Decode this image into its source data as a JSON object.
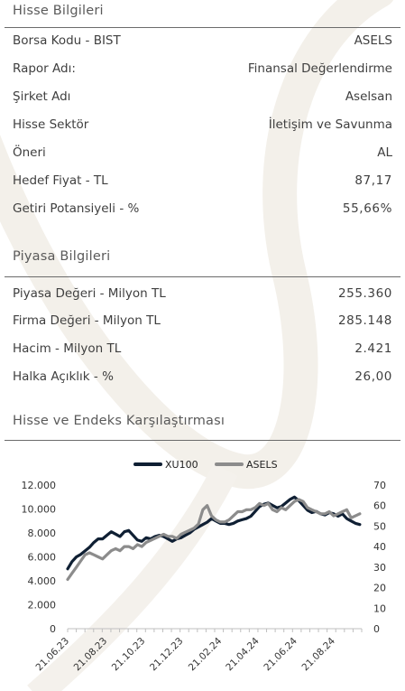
{
  "stock_info": {
    "title": "Hisse Bilgileri",
    "rows": [
      {
        "label": "Borsa Kodu - BIST",
        "value": "ASELS"
      },
      {
        "label": "Rapor Adı:",
        "value": "Finansal Değerlendirme"
      },
      {
        "label": "Şirket Adı",
        "value": "Aselsan"
      },
      {
        "label": "Hisse Sektör",
        "value": "İletişim ve Savunma"
      },
      {
        "label": "Öneri",
        "value": "AL"
      },
      {
        "label": "Hedef Fiyat - TL",
        "value": "87,17"
      },
      {
        "label": "Getiri Potansiyeli - %",
        "value": "55,66%"
      }
    ]
  },
  "market_info": {
    "title": "Piyasa Bilgileri",
    "rows": [
      {
        "label": "Piyasa Değeri - Milyon TL",
        "value": "255.360"
      },
      {
        "label": "Firma Değeri - Milyon TL",
        "value": "285.148"
      },
      {
        "label": "Hacim - Milyon TL",
        "value": "2.421"
      },
      {
        "label": "Halka Açıklık - %",
        "value": "26,00"
      }
    ]
  },
  "comparison": {
    "title": "Hisse ve Endeks Karşılaştırması"
  },
  "chart_data": {
    "type": "line",
    "title": "",
    "xlabel": "",
    "ylabel": "",
    "legend_position": "top-center",
    "grid": false,
    "x_tick_labels": [
      "21.06.23",
      "21.08.23",
      "21.10.23",
      "21.12.23",
      "21.02.24",
      "21.04.24",
      "21.06.24",
      "21.08.24"
    ],
    "x_range": [
      "21.06.23",
      "05.10.24"
    ],
    "y_left_ticks": [
      "0",
      "2.000",
      "4.000",
      "6.000",
      "8.000",
      "10.000",
      "12.000"
    ],
    "y_left_range": [
      0,
      12000
    ],
    "y_right_ticks": [
      "0",
      "10",
      "20",
      "30",
      "40",
      "50",
      "60",
      "70"
    ],
    "y_right_range": [
      0,
      70
    ],
    "series": [
      {
        "name": "XU100",
        "axis": "left",
        "color": "#0f1f33",
        "x": [
          "21.06.23",
          "28.06.23",
          "05.07.23",
          "12.07.23",
          "19.07.23",
          "26.07.23",
          "02.08.23",
          "09.08.23",
          "16.08.23",
          "23.08.23",
          "30.08.23",
          "06.09.23",
          "13.09.23",
          "20.09.23",
          "27.09.23",
          "04.10.23",
          "11.10.23",
          "18.10.23",
          "25.10.23",
          "01.11.23",
          "08.11.23",
          "15.11.23",
          "22.11.23",
          "29.11.23",
          "06.12.23",
          "13.12.23",
          "20.12.23",
          "27.12.23",
          "03.01.24",
          "10.01.24",
          "17.01.24",
          "24.01.24",
          "31.01.24",
          "07.02.24",
          "14.02.24",
          "21.02.24",
          "28.02.24",
          "06.03.24",
          "13.03.24",
          "20.03.24",
          "27.03.24",
          "03.04.24",
          "10.04.24",
          "17.04.24",
          "24.04.24",
          "01.05.24",
          "08.05.24",
          "15.05.24",
          "22.05.24",
          "29.05.24",
          "05.06.24",
          "12.06.24",
          "19.06.24",
          "26.06.24",
          "03.07.24",
          "10.07.24",
          "17.07.24",
          "24.07.24",
          "31.07.24",
          "07.08.24",
          "14.08.24",
          "21.08.24",
          "28.08.24",
          "04.09.24",
          "11.09.24",
          "18.09.24",
          "25.09.24",
          "02.10.24"
        ],
        "values": [
          5000,
          5600,
          6000,
          6200,
          6500,
          6800,
          7200,
          7500,
          7500,
          7800,
          8100,
          7900,
          7700,
          8100,
          8200,
          7800,
          7400,
          7300,
          7600,
          7500,
          7700,
          7800,
          7700,
          7500,
          7300,
          7500,
          7600,
          7800,
          8000,
          8300,
          8500,
          8700,
          8900,
          9200,
          9000,
          8800,
          8800,
          8700,
          8800,
          9000,
          9100,
          9200,
          9400,
          9800,
          10200,
          10400,
          10500,
          10300,
          10100,
          10200,
          10500,
          10800,
          11000,
          10700,
          10300,
          9900,
          9700,
          9800,
          9600,
          9500,
          9700,
          9600,
          9400,
          9600,
          9200,
          9000,
          8800,
          8700
        ]
      },
      {
        "name": "ASELS",
        "axis": "right",
        "color": "#8c8c8c",
        "x": [
          "21.06.23",
          "28.06.23",
          "05.07.23",
          "12.07.23",
          "19.07.23",
          "26.07.23",
          "02.08.23",
          "09.08.23",
          "16.08.23",
          "23.08.23",
          "30.08.23",
          "06.09.23",
          "13.09.23",
          "20.09.23",
          "27.09.23",
          "04.10.23",
          "11.10.23",
          "18.10.23",
          "25.10.23",
          "01.11.23",
          "08.11.23",
          "15.11.23",
          "22.11.23",
          "29.11.23",
          "06.12.23",
          "13.12.23",
          "20.12.23",
          "27.12.23",
          "03.01.24",
          "10.01.24",
          "17.01.24",
          "24.01.24",
          "31.01.24",
          "07.02.24",
          "14.02.24",
          "21.02.24",
          "28.02.24",
          "06.03.24",
          "13.03.24",
          "20.03.24",
          "27.03.24",
          "03.04.24",
          "10.04.24",
          "17.04.24",
          "24.04.24",
          "01.05.24",
          "08.05.24",
          "15.05.24",
          "22.05.24",
          "29.05.24",
          "05.06.24",
          "12.06.24",
          "19.06.24",
          "26.06.24",
          "03.07.24",
          "10.07.24",
          "17.07.24",
          "24.07.24",
          "31.07.24",
          "07.08.24",
          "14.08.24",
          "21.08.24",
          "28.08.24",
          "04.09.24",
          "11.09.24",
          "18.09.24",
          "25.09.24",
          "02.10.24"
        ],
        "values": [
          24,
          27,
          30,
          33,
          36,
          37,
          36,
          35,
          34,
          36,
          38,
          39,
          38,
          40,
          40,
          39,
          41,
          40,
          42,
          43,
          44,
          45,
          46,
          45,
          45,
          44,
          46,
          47,
          48,
          49,
          51,
          58,
          60,
          55,
          53,
          52,
          52,
          53,
          55,
          57,
          57,
          58,
          58,
          59,
          61,
          60,
          61,
          58,
          57,
          59,
          58,
          60,
          62,
          63,
          62,
          59,
          58,
          57,
          56,
          56,
          57,
          55,
          56,
          57,
          58,
          54,
          55,
          56
        ]
      }
    ]
  }
}
